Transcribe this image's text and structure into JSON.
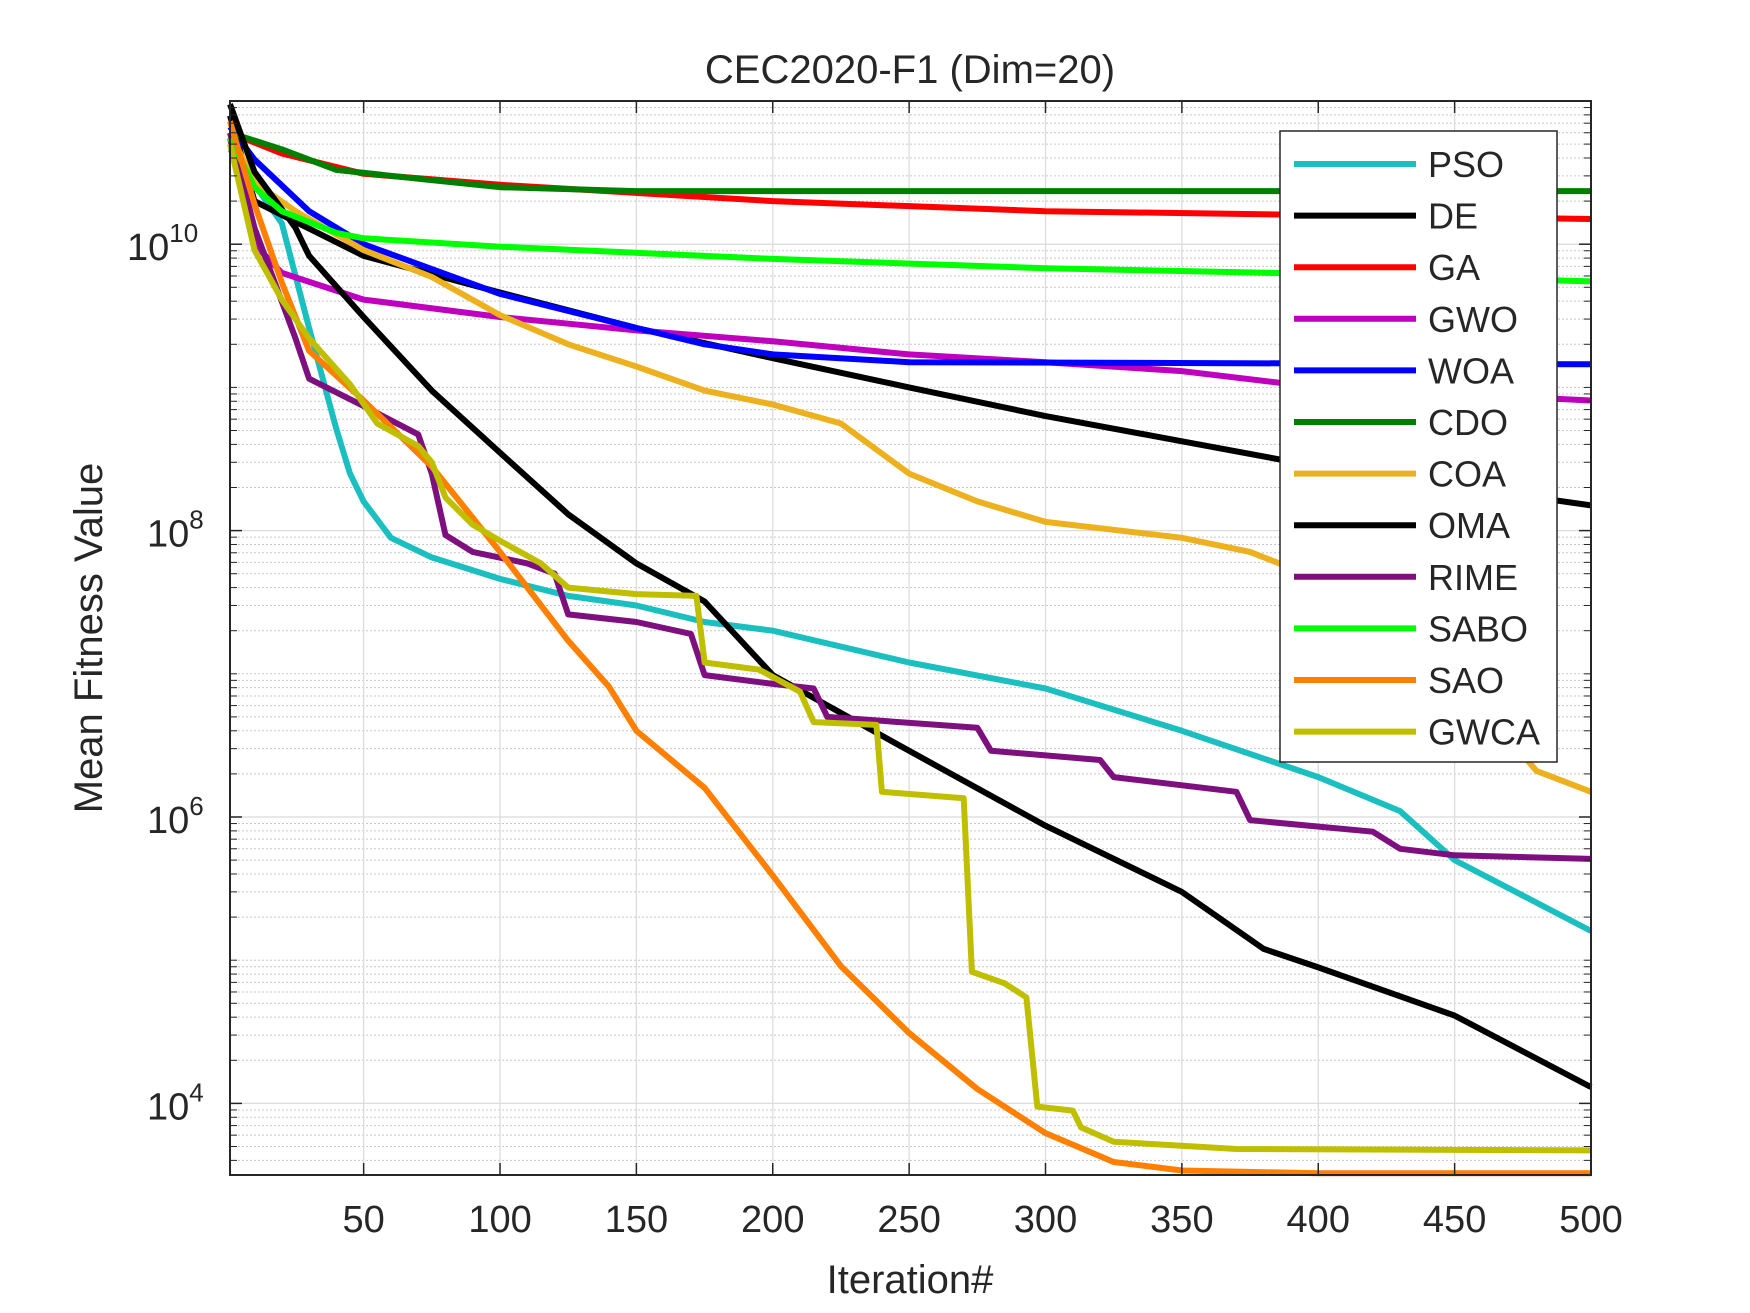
{
  "chart_data": {
    "type": "line",
    "title": "CEC2020-F1 (Dim=20)",
    "xlabel": "Iteration#",
    "ylabel": "Mean Fitness Value",
    "xlim": [
      1,
      500
    ],
    "ylim": [
      3162,
      100000000000.0
    ],
    "yscale": "log",
    "grid": true,
    "minor_grid": true,
    "legend_position": "top-right",
    "xticks": [
      50,
      100,
      150,
      200,
      250,
      300,
      350,
      400,
      450,
      500
    ],
    "yticks": [
      {
        "value": 10000.0,
        "base": "10",
        "exp": "4"
      },
      {
        "value": 1000000.0,
        "base": "10",
        "exp": "6"
      },
      {
        "value": 100000000.0,
        "base": "10",
        "exp": "8"
      },
      {
        "value": 10000000000.0,
        "base": "10",
        "exp": "10"
      }
    ],
    "series": [
      {
        "name": "PSO",
        "color": "#1BBFBF",
        "x": [
          1,
          20,
          30,
          40,
          45,
          50,
          60,
          75,
          100,
          125,
          150,
          175,
          200,
          250,
          300,
          350,
          400,
          430,
          450,
          500
        ],
        "y": [
          46000000000.0,
          14000000000.0,
          2600000000.0,
          510000000.0,
          250000000.0,
          160000000.0,
          89000000.0,
          65000000.0,
          46000000.0,
          35000000.0,
          30000000.0,
          23000000.0,
          20000000.0,
          12000000.0,
          7900000.0,
          4000000.0,
          1900000.0,
          1100000.0,
          500000.0,
          160000.0
        ]
      },
      {
        "name": "DE",
        "color": "#000000",
        "x": [
          1,
          10,
          20,
          50,
          100,
          150,
          200,
          250,
          300,
          350,
          400,
          500
        ],
        "y": [
          79000000000.0,
          20000000000.0,
          16000000000.0,
          8300000000.0,
          4600000000.0,
          2600000000.0,
          1600000000.0,
          1000000000.0,
          630000000.0,
          420000000.0,
          280000000.0,
          150000000.0
        ]
      },
      {
        "name": "GA",
        "color": "#FF0000",
        "x": [
          1,
          20,
          50,
          100,
          200,
          300,
          400,
          500
        ],
        "y": [
          60000000000.0,
          43000000000.0,
          31000000000.0,
          26000000000.0,
          20000000000.0,
          17000000000.0,
          16000000000.0,
          15000000000.0
        ]
      },
      {
        "name": "GWO",
        "color": "#BF00BF",
        "x": [
          1,
          10,
          20,
          50,
          100,
          150,
          200,
          250,
          300,
          350,
          400,
          500
        ],
        "y": [
          55000000000.0,
          10000000000.0,
          6300000000.0,
          4100000000.0,
          3100000000.0,
          2500000000.0,
          2100000000.0,
          1700000000.0,
          1500000000.0,
          1300000000.0,
          1000000000.0,
          810000000.0
        ]
      },
      {
        "name": "WOA",
        "color": "#0000FF",
        "x": [
          1,
          10,
          30,
          50,
          100,
          150,
          175,
          200,
          250,
          500
        ],
        "y": [
          66000000000.0,
          39000000000.0,
          17000000000.0,
          10000000000.0,
          4500000000.0,
          2600000000.0,
          2000000000.0,
          1700000000.0,
          1500000000.0,
          1450000000.0
        ]
      },
      {
        "name": "CDO",
        "color": "#007F00",
        "x": [
          1,
          20,
          40,
          75,
          100,
          150,
          500
        ],
        "y": [
          60000000000.0,
          46000000000.0,
          33000000000.0,
          28000000000.0,
          25000000000.0,
          23500000000.0,
          23500000000.0
        ]
      },
      {
        "name": "COA",
        "color": "#EDB120",
        "x": [
          1,
          10,
          25,
          50,
          75,
          100,
          125,
          150,
          175,
          200,
          225,
          250,
          275,
          300,
          350,
          375,
          400,
          450,
          480,
          500
        ],
        "y": [
          60000000000.0,
          27000000000.0,
          17000000000.0,
          9100000000.0,
          5900000000.0,
          3200000000.0,
          2000000000.0,
          1400000000.0,
          950000000.0,
          760000000.0,
          560000000.0,
          250000000.0,
          160000000.0,
          115000000.0,
          89000000.0,
          71000000.0,
          46000000.0,
          9800000.0,
          2100000.0,
          1500000.0
        ]
      },
      {
        "name": "OMA",
        "color": "#000000",
        "x": [
          1,
          10,
          25,
          30,
          50,
          75,
          100,
          125,
          150,
          175,
          200,
          250,
          300,
          350,
          380,
          400,
          450,
          500
        ],
        "y": [
          95000000000.0,
          32000000000.0,
          13000000000.0,
          8300000000.0,
          3100000000.0,
          950000000.0,
          350000000.0,
          130000000.0,
          59000000.0,
          32000000.0,
          9800000.0,
          2900000.0,
          870000.0,
          300000.0,
          120000.0,
          89000.0,
          41000.0,
          13000.0
        ]
      },
      {
        "name": "RIME",
        "color": "#7E0F7E",
        "x": [
          1,
          10,
          25,
          30,
          50,
          70,
          75,
          80,
          90,
          110,
          120,
          125,
          150,
          170,
          175,
          200,
          215,
          220,
          275,
          280,
          320,
          325,
          370,
          375,
          420,
          430,
          450,
          500
        ],
        "y": [
          60000000000.0,
          13000000000.0,
          2200000000.0,
          1150000000.0,
          740000000.0,
          470000000.0,
          250000000.0,
          93000000.0,
          71000000.0,
          59000000.0,
          50000000.0,
          26000000.0,
          23000000.0,
          19000000.0,
          9800000.0,
          8500000.0,
          7900000.0,
          5000000.0,
          4200000.0,
          2900000.0,
          2500000.0,
          1900000.0,
          1500000.0,
          950000.0,
          790000.0,
          600000.0,
          540000.0,
          510000.0
        ]
      },
      {
        "name": "SABO",
        "color": "#00FF00",
        "x": [
          1,
          10,
          20,
          40,
          50,
          100,
          200,
          300,
          400,
          500
        ],
        "y": [
          55000000000.0,
          25000000000.0,
          17000000000.0,
          12000000000.0,
          11000000000.0,
          9600000000.0,
          7900000000.0,
          6800000000.0,
          6200000000.0,
          5500000000.0
        ]
      },
      {
        "name": "SAO",
        "color": "#FF7F00",
        "x": [
          1,
          10,
          20,
          30,
          50,
          75,
          100,
          125,
          140,
          150,
          175,
          200,
          225,
          250,
          275,
          300,
          325,
          350,
          400,
          500
        ],
        "y": [
          72000000000.0,
          19000000000.0,
          5400000000.0,
          1800000000.0,
          810000000.0,
          280000000.0,
          71000000.0,
          17000000.0,
          8100000.0,
          4000000.0,
          1600000.0,
          390000.0,
          91000.0,
          31000.0,
          12600.0,
          6200.0,
          3900.0,
          3400.0,
          3250.0,
          3250.0
        ]
      },
      {
        "name": "GWCA",
        "color": "#BFBF00",
        "x": [
          1,
          10,
          20,
          30,
          45,
          55,
          70,
          75,
          80,
          90,
          100,
          115,
          125,
          150,
          172,
          175,
          195,
          210,
          215,
          238,
          240,
          270,
          273,
          285,
          293,
          297,
          310,
          313,
          325,
          370,
          500
        ],
        "y": [
          50000000000.0,
          9100000000.0,
          4100000000.0,
          2200000000.0,
          1050000000.0,
          560000000.0,
          390000000.0,
          300000000.0,
          170000000.0,
          110000000.0,
          85000000.0,
          59000000.0,
          40000000.0,
          36000000.0,
          35000000.0,
          12000000.0,
          10700000.0,
          7500000.0,
          4600000.0,
          4400000.0,
          1500000.0,
          1350000.0,
          83000.0,
          69000.0,
          55000.0,
          9500.0,
          8900.0,
          6800.0,
          5400.0,
          4800.0,
          4700.0
        ]
      }
    ]
  }
}
